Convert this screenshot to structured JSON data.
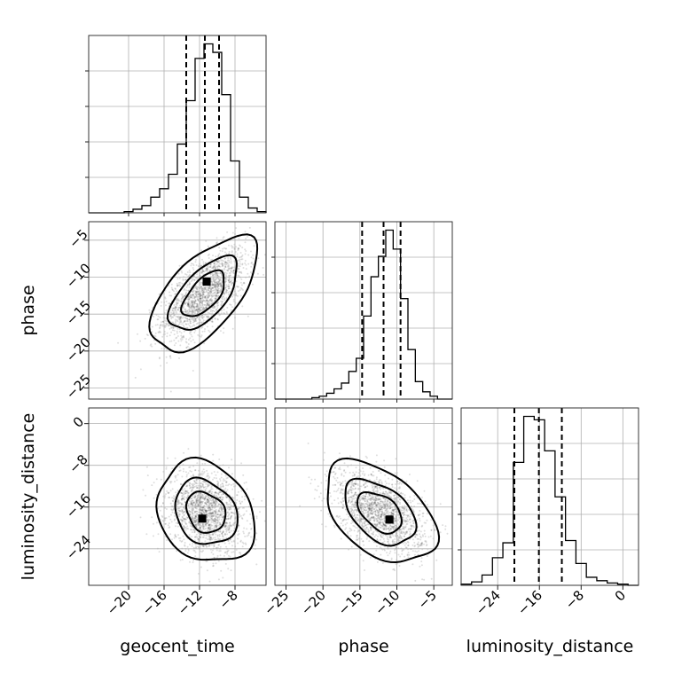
{
  "chart_data": {
    "type": "corner",
    "parameters": [
      "geocent_time",
      "phase",
      "luminosity_distance"
    ],
    "ranges": {
      "geocent_time": [
        -24.5,
        -4.5
      ],
      "phase": [
        -26.5,
        -2.5
      ],
      "luminosity_distance": [
        -31,
        3
      ]
    },
    "ticks": {
      "geocent_time": [
        -20,
        -16,
        -12,
        -8
      ],
      "phase": [
        -25,
        -20,
        -15,
        -10,
        -5
      ],
      "luminosity_distance": [
        -24,
        -16,
        -8,
        0
      ]
    },
    "tick_labels": {
      "geocent_time": [
        "−20",
        "−16",
        "−12",
        "−8"
      ],
      "phase": [
        "−25",
        "−20",
        "−15",
        "−10",
        "−5"
      ],
      "luminosity_distance": [
        "−24",
        "−16",
        "−8",
        "0"
      ]
    },
    "labels": {
      "geocent_time": "geocent_time",
      "phase": "phase",
      "luminosity_distance": "luminosity_distance"
    },
    "histograms": {
      "geocent_time": {
        "edges": [
          -24.5,
          -23.5,
          -22.5,
          -21.5,
          -20.5,
          -19.5,
          -18.5,
          -17.5,
          -16.5,
          -15.5,
          -14.5,
          -13.5,
          -12.5,
          -11.5,
          -10.5,
          -9.5,
          -8.5,
          -7.5,
          -6.5,
          -5.5,
          -4.5
        ],
        "counts": [
          0,
          0,
          0,
          0,
          1,
          3,
          6,
          13,
          20,
          32,
          57,
          93,
          128,
          140,
          133,
          98,
          43,
          13,
          4,
          1
        ],
        "quantiles": [
          -13.5,
          -11.4,
          -9.8
        ]
      },
      "phase": {
        "edges": [
          -26.5,
          -25.5,
          -24.5,
          -23.5,
          -22.5,
          -21.5,
          -20.5,
          -19.5,
          -18.5,
          -17.5,
          -16.5,
          -15.5,
          -14.5,
          -13.5,
          -12.5,
          -11.5,
          -10.5,
          -9.5,
          -8.5,
          -7.5,
          -6.5,
          -5.5,
          -4.5,
          -3.5,
          -2.5
        ],
        "counts": [
          0,
          0,
          0,
          0,
          0,
          1,
          2,
          4,
          7,
          11,
          19,
          28,
          57,
          84,
          98,
          116,
          103,
          69,
          34,
          12,
          5,
          2,
          0,
          0
        ],
        "quantiles": [
          -14.7,
          -11.8,
          -9.5
        ]
      },
      "luminosity_distance": {
        "edges": [
          -31,
          -29,
          -27,
          -25,
          -23,
          -21,
          -19,
          -17,
          -15,
          -13,
          -11,
          -9,
          -7,
          -5,
          -3,
          -1,
          1,
          3
        ],
        "counts": [
          1,
          3,
          9,
          24,
          37,
          107,
          147,
          144,
          117,
          77,
          39,
          19,
          7,
          4,
          2,
          1,
          0
        ],
        "quantiles": [
          -20.8,
          -16.1,
          -11.7
        ]
      }
    },
    "pairs": [
      {
        "x": "geocent_time",
        "y": "phase",
        "mean": [
          -11.5,
          -12.3
        ],
        "sd": [
          2.4,
          3.1
        ],
        "rho": 0.62,
        "peak": [
          -11.2,
          -10.6
        ],
        "contour_scale": [
          1.0,
          1.6,
          2.5
        ]
      },
      {
        "x": "geocent_time",
        "y": "luminosity_distance",
        "mean": [
          -11.3,
          -17.0
        ],
        "sd": [
          2.2,
          3.9
        ],
        "rho": -0.2,
        "peak": [
          -11.7,
          -18.2
        ],
        "contour_scale": [
          1.0,
          1.6,
          2.5
        ]
      },
      {
        "x": "phase",
        "y": "luminosity_distance",
        "mean": [
          -12.3,
          -17.0
        ],
        "sd": [
          3.0,
          3.9
        ],
        "rho": -0.45,
        "peak": [
          -11.0,
          -18.4
        ],
        "contour_scale": [
          1.0,
          1.6,
          2.5
        ]
      }
    ],
    "grid": true,
    "colors": {
      "points": "#000000",
      "density": "#000000",
      "lines": "#000000",
      "grid": "#b0b0b0"
    }
  }
}
